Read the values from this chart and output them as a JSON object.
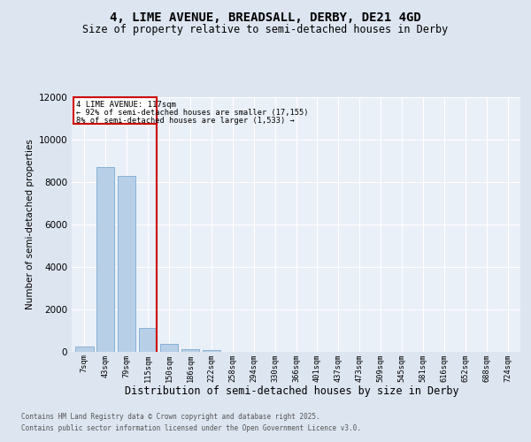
{
  "title1": "4, LIME AVENUE, BREADSALL, DERBY, DE21 4GD",
  "title2": "Size of property relative to semi-detached houses in Derby",
  "xlabel": "Distribution of semi-detached houses by size in Derby",
  "ylabel": "Number of semi-detached properties",
  "categories": [
    "7sqm",
    "43sqm",
    "79sqm",
    "115sqm",
    "150sqm",
    "186sqm",
    "222sqm",
    "258sqm",
    "294sqm",
    "330sqm",
    "366sqm",
    "401sqm",
    "437sqm",
    "473sqm",
    "509sqm",
    "545sqm",
    "581sqm",
    "616sqm",
    "652sqm",
    "688sqm",
    "724sqm"
  ],
  "values": [
    230,
    8700,
    8300,
    1100,
    350,
    110,
    50,
    0,
    0,
    0,
    0,
    0,
    0,
    0,
    0,
    0,
    0,
    0,
    0,
    0,
    0
  ],
  "bar_color": "#b8cfe8",
  "bar_edge_color": "#7aaad0",
  "vline_x": 3,
  "vline_color": "#cc0000",
  "annotation_title": "4 LIME AVENUE: 117sqm",
  "annotation_line1": "← 92% of semi-detached houses are smaller (17,155)",
  "annotation_line2": "8% of semi-detached houses are larger (1,533) →",
  "annotation_box_color": "#cc0000",
  "ylim": [
    0,
    12000
  ],
  "yticks": [
    0,
    2000,
    4000,
    6000,
    8000,
    10000,
    12000
  ],
  "bg_color": "#dde5f0",
  "plot_bg_color": "#eaf0f8",
  "footer1": "Contains HM Land Registry data © Crown copyright and database right 2025.",
  "footer2": "Contains public sector information licensed under the Open Government Licence v3.0."
}
